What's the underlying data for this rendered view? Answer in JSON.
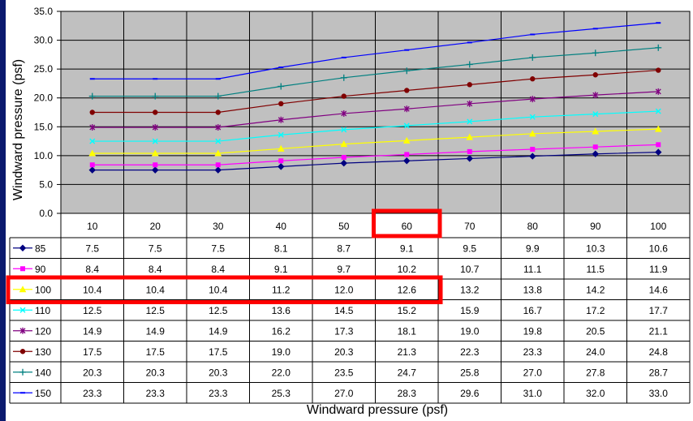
{
  "chart_data": {
    "type": "line",
    "ylabel": "Windward pressure (psf)",
    "xlabel": "Windward pressure (psf)",
    "ylim": [
      0,
      35
    ],
    "yticks": [
      "0.0",
      "5.0",
      "10.0",
      "15.0",
      "20.0",
      "25.0",
      "30.0",
      "35.0"
    ],
    "categories": [
      "10",
      "20",
      "30",
      "40",
      "50",
      "60",
      "70",
      "80",
      "90",
      "100"
    ],
    "grid": true,
    "plot_background": "#c0c0c0",
    "series": [
      {
        "name": "85",
        "color": "#000080",
        "marker": "diamond",
        "values": [
          7.5,
          7.5,
          7.5,
          8.1,
          8.7,
          9.1,
          9.5,
          9.9,
          10.3,
          10.6
        ],
        "labels": [
          "7.5",
          "7.5",
          "7.5",
          "8.1",
          "8.7",
          "9.1",
          "9.5",
          "9.9",
          "10.3",
          "10.6"
        ]
      },
      {
        "name": "90",
        "color": "#ff00ff",
        "marker": "square",
        "values": [
          8.4,
          8.4,
          8.4,
          9.1,
          9.7,
          10.2,
          10.7,
          11.1,
          11.5,
          11.9
        ],
        "labels": [
          "8.4",
          "8.4",
          "8.4",
          "9.1",
          "9.7",
          "10.2",
          "10.7",
          "11.1",
          "11.5",
          "11.9"
        ]
      },
      {
        "name": "100",
        "color": "#ffff00",
        "marker": "triangle",
        "values": [
          10.4,
          10.4,
          10.4,
          11.2,
          12.0,
          12.6,
          13.2,
          13.8,
          14.2,
          14.6
        ],
        "labels": [
          "10.4",
          "10.4",
          "10.4",
          "11.2",
          "12.0",
          "12.6",
          "13.2",
          "13.8",
          "14.2",
          "14.6"
        ]
      },
      {
        "name": "110",
        "color": "#00ffff",
        "marker": "x",
        "values": [
          12.5,
          12.5,
          12.5,
          13.6,
          14.5,
          15.2,
          15.9,
          16.7,
          17.2,
          17.7
        ],
        "labels": [
          "12.5",
          "12.5",
          "12.5",
          "13.6",
          "14.5",
          "15.2",
          "15.9",
          "16.7",
          "17.2",
          "17.7"
        ]
      },
      {
        "name": "120",
        "color": "#800080",
        "marker": "star",
        "values": [
          14.9,
          14.9,
          14.9,
          16.2,
          17.3,
          18.1,
          19.0,
          19.8,
          20.5,
          21.1
        ],
        "labels": [
          "14.9",
          "14.9",
          "14.9",
          "16.2",
          "17.3",
          "18.1",
          "19.0",
          "19.8",
          "20.5",
          "21.1"
        ]
      },
      {
        "name": "130",
        "color": "#800000",
        "marker": "circle",
        "values": [
          17.5,
          17.5,
          17.5,
          19.0,
          20.3,
          21.3,
          22.3,
          23.3,
          24.0,
          24.8
        ],
        "labels": [
          "17.5",
          "17.5",
          "17.5",
          "19.0",
          "20.3",
          "21.3",
          "22.3",
          "23.3",
          "24.0",
          "24.8"
        ]
      },
      {
        "name": "140",
        "color": "#008080",
        "marker": "plus",
        "values": [
          20.3,
          20.3,
          20.3,
          22.0,
          23.5,
          24.7,
          25.8,
          27.0,
          27.8,
          28.7
        ],
        "labels": [
          "20.3",
          "20.3",
          "20.3",
          "22.0",
          "23.5",
          "24.7",
          "25.8",
          "27.0",
          "27.8",
          "28.7"
        ]
      },
      {
        "name": "150",
        "color": "#0000ff",
        "marker": "dash",
        "values": [
          23.3,
          23.3,
          23.3,
          25.3,
          27.0,
          28.3,
          29.6,
          31.0,
          32.0,
          33.0
        ],
        "labels": [
          "23.3",
          "23.3",
          "23.3",
          "25.3",
          "27.0",
          "28.3",
          "29.6",
          "31.0",
          "32.0",
          "33.0"
        ]
      }
    ],
    "highlights": [
      {
        "target": "column",
        "category": "60",
        "color": "#ff0000"
      },
      {
        "target": "row",
        "series": "100",
        "from_category": "10",
        "to_category": "60",
        "color": "#ff0000"
      }
    ]
  }
}
